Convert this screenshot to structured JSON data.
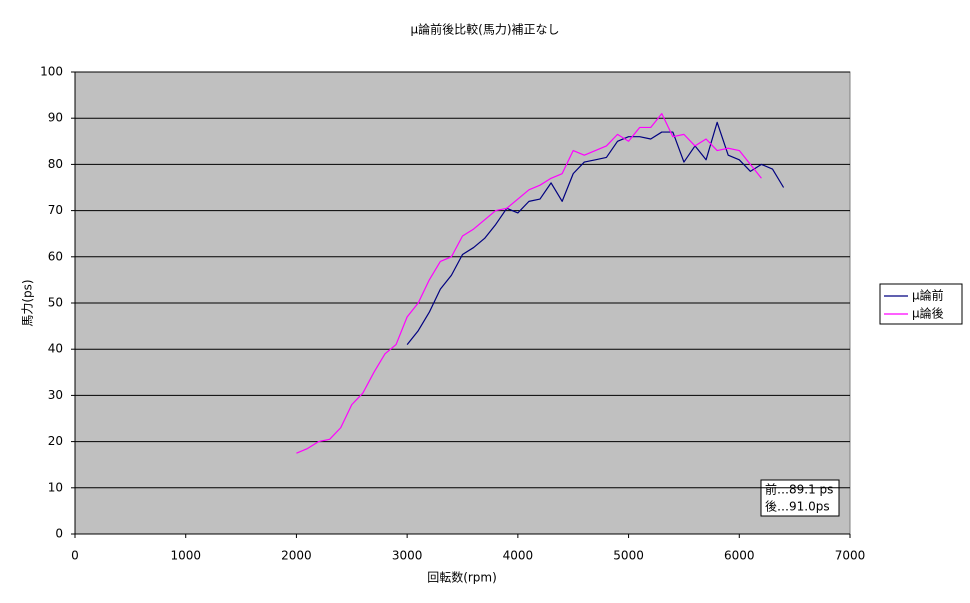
{
  "chart_data": {
    "type": "line",
    "title": "μ論前後比較(馬力)補正なし",
    "x_label": "回転数(rpm)",
    "y_label": "馬力(ps)",
    "x": [
      2000,
      2100,
      2200,
      2300,
      2400,
      2500,
      2600,
      2700,
      2800,
      2900,
      3000,
      3100,
      3200,
      3300,
      3400,
      3500,
      3600,
      3700,
      3800,
      3900,
      4000,
      4100,
      4200,
      4300,
      4400,
      4500,
      4600,
      4700,
      4800,
      4900,
      5000,
      5100,
      5200,
      5300,
      5400,
      5500,
      5600,
      5700,
      5800,
      5900,
      6000,
      6100,
      6200,
      6300,
      6400
    ],
    "series": [
      {
        "name": "μ論前",
        "color": "#000080",
        "values": [
          null,
          null,
          null,
          null,
          null,
          null,
          null,
          null,
          null,
          null,
          41,
          44,
          48,
          53,
          56,
          60.5,
          62,
          64,
          67,
          70.5,
          69.5,
          72,
          72.5,
          76,
          72,
          78,
          80.5,
          81,
          81.5,
          85,
          86,
          86,
          85.5,
          87,
          87,
          80.5,
          84,
          81,
          89.1,
          82,
          81,
          78.5,
          80,
          79,
          75
        ]
      },
      {
        "name": "μ論後",
        "color": "#ff00ff",
        "values": [
          17.5,
          18.5,
          20,
          20.5,
          23,
          28,
          30.5,
          35,
          39,
          41,
          47,
          50,
          55,
          59,
          60,
          64.5,
          66,
          68,
          70,
          70.5,
          72.5,
          74.5,
          75.5,
          77,
          78,
          83,
          82,
          83,
          84,
          86.5,
          85,
          88,
          88,
          91.0,
          86,
          86.5,
          84,
          85.5,
          83,
          83.5,
          83,
          80,
          77,
          null,
          null
        ]
      }
    ],
    "xlim": [
      0,
      7000
    ],
    "xticks": [
      0,
      1000,
      2000,
      3000,
      4000,
      5000,
      6000,
      7000
    ],
    "ylim": [
      0,
      100
    ],
    "yticks": [
      0,
      10,
      20,
      30,
      40,
      50,
      60,
      70,
      80,
      90,
      100
    ],
    "grid": true,
    "legend": "right",
    "annotations": [
      "前…89.1 ps",
      "後…91.0ps"
    ]
  }
}
